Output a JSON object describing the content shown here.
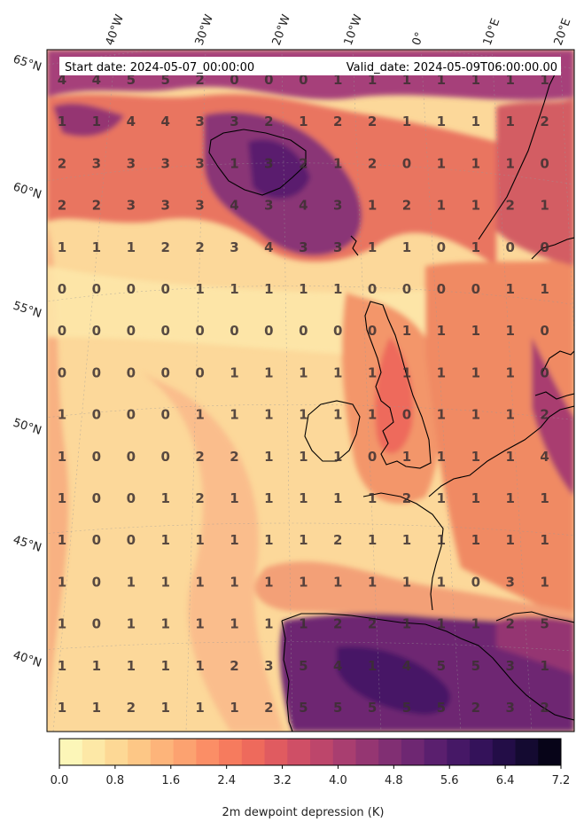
{
  "header": {
    "start_label": "Start date: 2024-05-07_00:00:00",
    "valid_label": "Valid_date: 2024-05-09T06:00:00.00"
  },
  "lon_labels": [
    "40°W",
    "30°W",
    "20°W",
    "10°W",
    "0°",
    "10°E",
    "20°E"
  ],
  "lat_labels": [
    "65°N",
    "60°N",
    "55°N",
    "50°N",
    "45°N",
    "40°N"
  ],
  "grid_values": [
    [
      4,
      4,
      5,
      5,
      2,
      0,
      0,
      0,
      1,
      1,
      1,
      1,
      1,
      1,
      1
    ],
    [
      1,
      1,
      4,
      4,
      3,
      3,
      2,
      1,
      2,
      2,
      1,
      1,
      1,
      1,
      2
    ],
    [
      2,
      3,
      3,
      3,
      3,
      1,
      3,
      2,
      1,
      2,
      0,
      1,
      1,
      1,
      0
    ],
    [
      2,
      2,
      3,
      3,
      3,
      4,
      3,
      4,
      3,
      1,
      2,
      1,
      1,
      2,
      1
    ],
    [
      1,
      1,
      1,
      2,
      2,
      3,
      4,
      3,
      3,
      1,
      1,
      0,
      1,
      0,
      0
    ],
    [
      0,
      0,
      0,
      0,
      1,
      1,
      1,
      1,
      1,
      0,
      0,
      0,
      0,
      1,
      1
    ],
    [
      0,
      0,
      0,
      0,
      0,
      0,
      0,
      0,
      0,
      0,
      1,
      1,
      1,
      1,
      0
    ],
    [
      0,
      0,
      0,
      0,
      0,
      1,
      1,
      1,
      1,
      1,
      1,
      1,
      1,
      1,
      0
    ],
    [
      1,
      0,
      0,
      0,
      1,
      1,
      1,
      1,
      1,
      1,
      0,
      1,
      1,
      1,
      2
    ],
    [
      1,
      0,
      0,
      0,
      2,
      2,
      1,
      1,
      1,
      0,
      1,
      1,
      1,
      1,
      4
    ],
    [
      1,
      0,
      0,
      1,
      2,
      1,
      1,
      1,
      1,
      1,
      2,
      1,
      1,
      1,
      1
    ],
    [
      1,
      0,
      0,
      1,
      1,
      1,
      1,
      1,
      2,
      1,
      1,
      1,
      1,
      1,
      1
    ],
    [
      1,
      0,
      1,
      1,
      1,
      1,
      1,
      1,
      1,
      1,
      1,
      1,
      0,
      3,
      1
    ],
    [
      1,
      0,
      1,
      1,
      1,
      1,
      1,
      1,
      2,
      2,
      1,
      1,
      1,
      2,
      5
    ],
    [
      1,
      1,
      1,
      1,
      1,
      2,
      3,
      5,
      4,
      1,
      4,
      5,
      5,
      3,
      1
    ],
    [
      1,
      1,
      2,
      1,
      1,
      1,
      2,
      5,
      5,
      5,
      5,
      5,
      2,
      3,
      2
    ]
  ],
  "colorbar": {
    "title": "2m dewpoint depression (K)",
    "ticks": [
      "0.0",
      "0.8",
      "1.6",
      "2.4",
      "3.2",
      "4.0",
      "4.8",
      "5.6",
      "6.4",
      "7.2"
    ],
    "colors": [
      "#fcf6b8",
      "#fde8a6",
      "#fdd895",
      "#fdc786",
      "#fdb47a",
      "#fca270",
      "#fb8e66",
      "#f67b5e",
      "#ee6a5c",
      "#e05b60",
      "#cf4f66",
      "#bd466b",
      "#a93e70",
      "#953672",
      "#812f73",
      "#6e2772",
      "#5a1f6e",
      "#461866",
      "#34125a",
      "#230d47",
      "#140a31",
      "#070418"
    ]
  }
}
